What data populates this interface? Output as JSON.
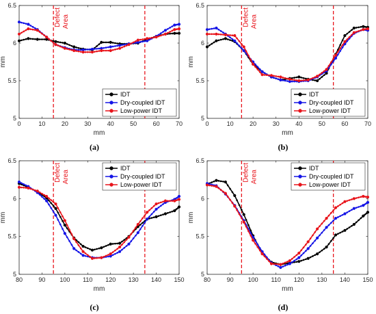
{
  "chart_data": [
    {
      "type": "line",
      "panel_label": "(a)",
      "xlabel": "mm",
      "ylabel": "mm",
      "xlim": [
        0,
        70
      ],
      "ylim": [
        5,
        6.5
      ],
      "xticks": [
        0,
        10,
        20,
        30,
        40,
        50,
        60,
        70
      ],
      "yticks": [
        5,
        5.5,
        6,
        6.5
      ],
      "defect_lines": [
        15,
        55
      ],
      "annotation": [
        "Defect",
        "Area"
      ],
      "legend_position": "bottom-right",
      "series": [
        {
          "name": "IDT",
          "color": "#000000",
          "x": [
            0,
            4,
            8,
            12,
            16,
            20,
            24,
            28,
            32,
            36,
            40,
            44,
            48,
            52,
            56,
            60,
            64,
            68,
            70
          ],
          "y": [
            6.03,
            6.06,
            6.05,
            6.05,
            6.02,
            6.0,
            5.95,
            5.92,
            5.91,
            6.01,
            6.01,
            5.99,
            5.99,
            6.0,
            6.05,
            6.09,
            6.12,
            6.13,
            6.13
          ]
        },
        {
          "name": "Dry-coupled IDT",
          "color": "#1515e6",
          "x": [
            0,
            4,
            8,
            12,
            16,
            20,
            24,
            28,
            32,
            36,
            40,
            44,
            48,
            52,
            56,
            60,
            64,
            68,
            70
          ],
          "y": [
            6.28,
            6.25,
            6.18,
            6.08,
            5.98,
            5.94,
            5.91,
            5.91,
            5.92,
            5.93,
            5.95,
            5.97,
            5.99,
            6.01,
            6.03,
            6.09,
            6.17,
            6.24,
            6.25
          ]
        },
        {
          "name": "Low-power IDT",
          "color": "#e8141b",
          "x": [
            0,
            4,
            8,
            12,
            16,
            20,
            24,
            28,
            32,
            36,
            40,
            44,
            48,
            52,
            56,
            60,
            64,
            68,
            70
          ],
          "y": [
            6.12,
            6.19,
            6.17,
            6.08,
            5.98,
            5.93,
            5.9,
            5.88,
            5.88,
            5.9,
            5.9,
            5.93,
            5.98,
            6.04,
            6.06,
            6.08,
            6.12,
            6.18,
            6.19
          ]
        }
      ]
    },
    {
      "type": "line",
      "panel_label": "(b)",
      "xlabel": "mm",
      "ylabel": "mm",
      "xlim": [
        0,
        70
      ],
      "ylim": [
        5,
        6.5
      ],
      "xticks": [
        0,
        10,
        20,
        30,
        40,
        50,
        60,
        70
      ],
      "yticks": [
        5,
        5.5,
        6,
        6.5
      ],
      "defect_lines": [
        15,
        55
      ],
      "annotation": [
        "Defect",
        "Area"
      ],
      "legend_position": "bottom-right",
      "series": [
        {
          "name": "IDT",
          "color": "#000000",
          "x": [
            0,
            4,
            8,
            12,
            16,
            20,
            24,
            28,
            32,
            36,
            40,
            44,
            48,
            52,
            56,
            60,
            64,
            68,
            70
          ],
          "y": [
            5.95,
            6.03,
            6.06,
            6.02,
            5.9,
            5.72,
            5.62,
            5.55,
            5.51,
            5.53,
            5.55,
            5.52,
            5.5,
            5.6,
            5.85,
            6.1,
            6.2,
            6.22,
            6.21
          ]
        },
        {
          "name": "Dry-coupled IDT",
          "color": "#1515e6",
          "x": [
            0,
            4,
            8,
            12,
            16,
            20,
            24,
            28,
            32,
            36,
            40,
            44,
            48,
            52,
            56,
            60,
            64,
            68,
            70
          ],
          "y": [
            6.18,
            6.2,
            6.12,
            6.03,
            5.9,
            5.75,
            5.62,
            5.55,
            5.51,
            5.49,
            5.49,
            5.5,
            5.55,
            5.63,
            5.8,
            5.99,
            6.13,
            6.18,
            6.17
          ]
        },
        {
          "name": "Low-power IDT",
          "color": "#e8141b",
          "x": [
            0,
            4,
            8,
            12,
            16,
            20,
            24,
            28,
            32,
            36,
            40,
            44,
            48,
            52,
            56,
            60,
            64,
            68,
            70
          ],
          "y": [
            6.12,
            6.12,
            6.11,
            6.1,
            5.95,
            5.72,
            5.58,
            5.57,
            5.55,
            5.52,
            5.5,
            5.51,
            5.56,
            5.65,
            5.84,
            6.02,
            6.14,
            6.18,
            6.19
          ]
        }
      ]
    },
    {
      "type": "line",
      "panel_label": "(c)",
      "xlabel": "mm",
      "ylabel": "mm",
      "xlim": [
        80,
        150
      ],
      "ylim": [
        5,
        6.5
      ],
      "xticks": [
        80,
        90,
        100,
        110,
        120,
        130,
        140,
        150
      ],
      "yticks": [
        5,
        5.5,
        6,
        6.5
      ],
      "defect_lines": [
        95,
        135
      ],
      "annotation": [
        "Defect",
        "Area"
      ],
      "legend_position": "top-right",
      "series": [
        {
          "name": "IDT",
          "color": "#000000",
          "x": [
            80,
            84,
            88,
            92,
            96,
            100,
            104,
            108,
            112,
            116,
            120,
            124,
            128,
            132,
            136,
            140,
            144,
            148,
            150
          ],
          "y": [
            6.2,
            6.15,
            6.09,
            6.01,
            5.87,
            5.65,
            5.48,
            5.37,
            5.32,
            5.35,
            5.4,
            5.41,
            5.5,
            5.63,
            5.73,
            5.76,
            5.8,
            5.84,
            5.89
          ]
        },
        {
          "name": "Dry-coupled IDT",
          "color": "#1515e6",
          "x": [
            80,
            84,
            88,
            92,
            96,
            100,
            104,
            108,
            112,
            116,
            120,
            124,
            128,
            132,
            136,
            140,
            144,
            148,
            150
          ],
          "y": [
            6.22,
            6.16,
            6.08,
            5.97,
            5.78,
            5.54,
            5.34,
            5.25,
            5.22,
            5.22,
            5.24,
            5.3,
            5.4,
            5.55,
            5.73,
            5.86,
            5.95,
            5.99,
            6.03
          ]
        },
        {
          "name": "Low-power IDT",
          "color": "#e8141b",
          "x": [
            80,
            84,
            88,
            92,
            96,
            100,
            104,
            108,
            112,
            116,
            120,
            124,
            128,
            132,
            136,
            140,
            144,
            148,
            150
          ],
          "y": [
            6.15,
            6.14,
            6.1,
            6.03,
            5.93,
            5.71,
            5.47,
            5.3,
            5.21,
            5.22,
            5.27,
            5.36,
            5.49,
            5.66,
            5.82,
            5.93,
            5.97,
            5.97,
            5.99
          ]
        }
      ]
    },
    {
      "type": "line",
      "panel_label": "(d)",
      "xlabel": "mm",
      "ylabel": "mm",
      "xlim": [
        80,
        150
      ],
      "ylim": [
        5,
        6.5
      ],
      "xticks": [
        80,
        90,
        100,
        110,
        120,
        130,
        140,
        150
      ],
      "yticks": [
        5,
        5.5,
        6,
        6.5
      ],
      "defect_lines": [
        95,
        135
      ],
      "annotation": [
        "Defect",
        "Area"
      ],
      "legend_position": "top-right",
      "series": [
        {
          "name": "IDT",
          "color": "#000000",
          "x": [
            80,
            84,
            88,
            92,
            96,
            100,
            104,
            108,
            112,
            116,
            120,
            124,
            128,
            132,
            136,
            140,
            144,
            148,
            150
          ],
          "y": [
            6.19,
            6.24,
            6.22,
            6.04,
            5.79,
            5.51,
            5.28,
            5.16,
            5.13,
            5.15,
            5.17,
            5.21,
            5.27,
            5.36,
            5.52,
            5.58,
            5.66,
            5.77,
            5.82
          ]
        },
        {
          "name": "Dry-coupled IDT",
          "color": "#1515e6",
          "x": [
            80,
            84,
            88,
            92,
            96,
            100,
            104,
            108,
            112,
            116,
            120,
            124,
            128,
            132,
            136,
            140,
            144,
            148,
            150
          ],
          "y": [
            6.2,
            6.17,
            6.06,
            5.91,
            5.71,
            5.49,
            5.3,
            5.15,
            5.09,
            5.14,
            5.22,
            5.34,
            5.48,
            5.62,
            5.74,
            5.8,
            5.87,
            5.91,
            5.95
          ]
        },
        {
          "name": "Low-power IDT",
          "color": "#e8141b",
          "x": [
            80,
            84,
            88,
            92,
            96,
            100,
            104,
            108,
            112,
            116,
            120,
            124,
            128,
            132,
            136,
            140,
            144,
            148,
            150
          ],
          "y": [
            6.18,
            6.16,
            6.07,
            5.9,
            5.69,
            5.45,
            5.27,
            5.14,
            5.13,
            5.18,
            5.28,
            5.43,
            5.6,
            5.74,
            5.88,
            5.96,
            6.0,
            6.03,
            6.02
          ]
        }
      ]
    }
  ]
}
